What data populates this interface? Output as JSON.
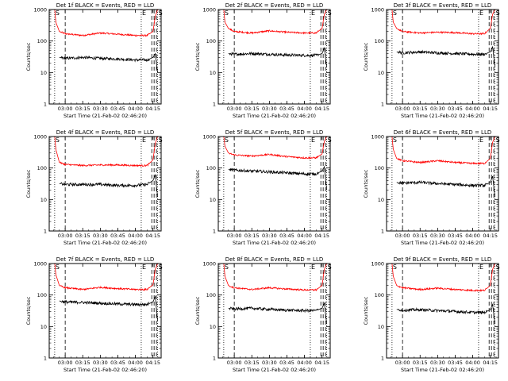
{
  "figure": {
    "panel_titles": [
      "Det 1f BLACK = Events, RED = LLD",
      "Det 2f BLACK = Events, RED = LLD",
      "Det 3f BLACK = Events, RED = LLD",
      "Det 4f BLACK = Events, RED = LLD",
      "Det 5f BLACK = Events, RED = LLD",
      "Det 6f BLACK = Events, RED = LLD",
      "Det 7f BLACK = Events, RED = LLD",
      "Det 8f BLACK = Events, RED = LLD",
      "Det 9f BLACK = Events, RED = LLD"
    ],
    "ylabel": "Counts/sec",
    "xlabel": "Start Time (21-Feb-02 02:46:20)",
    "xticks": [
      "03:00",
      "03:15",
      "03:30",
      "03:45",
      "04:00",
      "04:15"
    ],
    "yticks": [
      "1",
      "10",
      "100",
      "1000"
    ],
    "flags": [
      "S",
      "E",
      "S"
    ]
  },
  "colors": {
    "events": "#000000",
    "lld": "#ff0000",
    "axes": "#000000"
  },
  "chart_data": [
    {
      "type": "line",
      "title": "Det 1f BLACK = Events, RED = LLD",
      "xlabel": "Start Time (21-Feb-02 02:46:20)",
      "ylabel": "Counts/sec",
      "ylim": [
        1,
        1000
      ],
      "yscale": "log",
      "xlim": [
        "02:46:20",
        "04:22:00"
      ],
      "grid": false,
      "x": [
        "02:51",
        "02:52",
        "02:55",
        "03:00",
        "03:15",
        "03:30",
        "03:45",
        "04:00",
        "04:10",
        "04:15",
        "04:17",
        "04:19"
      ],
      "series": [
        {
          "name": "RED = LLD",
          "values": [
            1000,
            400,
            200,
            170,
            150,
            180,
            165,
            150,
            150,
            200,
            600,
            1000
          ]
        },
        {
          "name": "BLACK = Events",
          "values": [
            null,
            null,
            30,
            28,
            30,
            28,
            27,
            25,
            25,
            30,
            40,
            10
          ]
        }
      ],
      "vlines_dotted": [
        "02:51",
        "04:05",
        "04:19"
      ],
      "vlines_dashed": [
        "03:00",
        "04:14",
        "04:16",
        "04:18"
      ]
    },
    {
      "type": "line",
      "title": "Det 2f BLACK = Events, RED = LLD",
      "xlabel": "Start Time (21-Feb-02 02:46:20)",
      "ylabel": "Counts/sec",
      "ylim": [
        1,
        1000
      ],
      "yscale": "log",
      "xlim": [
        "02:46:20",
        "04:22:00"
      ],
      "grid": false,
      "x": [
        "02:51",
        "02:52",
        "02:55",
        "03:00",
        "03:15",
        "03:30",
        "03:45",
        "04:00",
        "04:10",
        "04:15",
        "04:17",
        "04:19"
      ],
      "series": [
        {
          "name": "RED = LLD",
          "values": [
            1000,
            400,
            250,
            200,
            180,
            210,
            190,
            180,
            180,
            250,
            700,
            1000
          ]
        },
        {
          "name": "BLACK = Events",
          "values": [
            null,
            null,
            40,
            38,
            40,
            38,
            36,
            35,
            35,
            40,
            60,
            15
          ]
        }
      ],
      "vlines_dotted": [
        "02:51",
        "04:05",
        "04:19"
      ],
      "vlines_dashed": [
        "03:00",
        "04:14",
        "04:16",
        "04:18"
      ]
    },
    {
      "type": "line",
      "title": "Det 3f BLACK = Events, RED = LLD",
      "xlabel": "Start Time (21-Feb-02 02:46:20)",
      "ylabel": "Counts/sec",
      "ylim": [
        1,
        1000
      ],
      "yscale": "log",
      "xlim": [
        "02:46:20",
        "04:22:00"
      ],
      "grid": false,
      "x": [
        "02:51",
        "02:52",
        "02:55",
        "03:00",
        "03:15",
        "03:30",
        "03:45",
        "04:00",
        "04:10",
        "04:15",
        "04:17",
        "04:19"
      ],
      "series": [
        {
          "name": "RED = LLD",
          "values": [
            1000,
            400,
            250,
            200,
            180,
            190,
            185,
            170,
            170,
            250,
            700,
            1000
          ]
        },
        {
          "name": "BLACK = Events",
          "values": [
            null,
            null,
            45,
            42,
            45,
            42,
            40,
            38,
            38,
            45,
            65,
            15
          ]
        }
      ],
      "vlines_dotted": [
        "02:51",
        "04:05",
        "04:19"
      ],
      "vlines_dashed": [
        "03:00",
        "04:14",
        "04:16",
        "04:18"
      ]
    },
    {
      "type": "line",
      "title": "Det 4f BLACK = Events, RED = LLD",
      "xlabel": "Start Time (21-Feb-02 02:46:20)",
      "ylabel": "Counts/sec",
      "ylim": [
        1,
        1000
      ],
      "yscale": "log",
      "xlim": [
        "02:46:20",
        "04:22:00"
      ],
      "grid": false,
      "x": [
        "02:51",
        "02:52",
        "02:55",
        "03:00",
        "03:15",
        "03:30",
        "03:45",
        "04:00",
        "04:10",
        "04:15",
        "04:17",
        "04:19"
      ],
      "series": [
        {
          "name": "RED = LLD",
          "values": [
            1000,
            400,
            150,
            130,
            120,
            125,
            125,
            120,
            120,
            180,
            600,
            1000
          ]
        },
        {
          "name": "BLACK = Events",
          "values": [
            null,
            null,
            32,
            30,
            30,
            30,
            28,
            28,
            30,
            40,
            60,
            12
          ]
        }
      ],
      "vlines_dotted": [
        "02:51",
        "04:05",
        "04:19"
      ],
      "vlines_dashed": [
        "03:00",
        "04:14",
        "04:16",
        "04:18"
      ]
    },
    {
      "type": "line",
      "title": "Det 5f BLACK = Events, RED = LLD",
      "xlabel": "Start Time (21-Feb-02 02:46:20)",
      "ylabel": "Counts/sec",
      "ylim": [
        1,
        1000
      ],
      "yscale": "log",
      "xlim": [
        "02:46:20",
        "04:22:00"
      ],
      "grid": false,
      "x": [
        "02:51",
        "02:52",
        "02:55",
        "03:00",
        "03:15",
        "03:30",
        "03:45",
        "04:00",
        "04:10",
        "04:15",
        "04:17",
        "04:19"
      ],
      "series": [
        {
          "name": "RED = LLD",
          "values": [
            1000,
            500,
            300,
            260,
            240,
            270,
            230,
            210,
            210,
            280,
            700,
            1000
          ]
        },
        {
          "name": "BLACK = Events",
          "values": [
            null,
            null,
            90,
            85,
            80,
            75,
            70,
            65,
            65,
            80,
            110,
            20
          ]
        }
      ],
      "vlines_dotted": [
        "02:51",
        "04:05",
        "04:19"
      ],
      "vlines_dashed": [
        "03:00",
        "04:14",
        "04:16",
        "04:18"
      ]
    },
    {
      "type": "line",
      "title": "Det 6f BLACK = Events, RED = LLD",
      "xlabel": "Start Time (21-Feb-02 02:46:20)",
      "ylabel": "Counts/sec",
      "ylim": [
        1,
        1000
      ],
      "yscale": "log",
      "xlim": [
        "02:46:20",
        "04:22:00"
      ],
      "grid": false,
      "x": [
        "02:51",
        "02:52",
        "02:55",
        "03:00",
        "03:15",
        "03:30",
        "03:45",
        "04:00",
        "04:10",
        "04:15",
        "04:17",
        "04:19"
      ],
      "series": [
        {
          "name": "RED = LLD",
          "values": [
            1000,
            400,
            200,
            170,
            150,
            170,
            150,
            140,
            140,
            200,
            650,
            1000
          ]
        },
        {
          "name": "BLACK = Events",
          "values": [
            null,
            null,
            35,
            33,
            35,
            32,
            30,
            28,
            28,
            35,
            55,
            12
          ]
        }
      ],
      "vlines_dotted": [
        "02:51",
        "04:05",
        "04:19"
      ],
      "vlines_dashed": [
        "03:00",
        "04:14",
        "04:16",
        "04:18"
      ]
    },
    {
      "type": "line",
      "title": "Det 7f BLACK = Events, RED = LLD",
      "xlabel": "Start Time (21-Feb-02 02:46:20)",
      "ylabel": "Counts/sec",
      "ylim": [
        1,
        1000
      ],
      "yscale": "log",
      "xlim": [
        "02:46:20",
        "04:22:00"
      ],
      "grid": false,
      "x": [
        "02:51",
        "02:52",
        "02:55",
        "03:00",
        "03:15",
        "03:30",
        "03:45",
        "04:00",
        "04:10",
        "04:15",
        "04:17",
        "04:19"
      ],
      "series": [
        {
          "name": "RED = LLD",
          "values": [
            1000,
            450,
            200,
            170,
            150,
            175,
            160,
            150,
            150,
            210,
            650,
            1000
          ]
        },
        {
          "name": "BLACK = Events",
          "values": [
            null,
            null,
            65,
            60,
            58,
            55,
            52,
            50,
            50,
            60,
            90,
            15
          ]
        }
      ],
      "vlines_dotted": [
        "02:51",
        "04:05",
        "04:19"
      ],
      "vlines_dashed": [
        "03:00",
        "04:14",
        "04:16",
        "04:18"
      ]
    },
    {
      "type": "line",
      "title": "Det 8f BLACK = Events, RED = LLD",
      "xlabel": "Start Time (21-Feb-02 02:46:20)",
      "ylabel": "Counts/sec",
      "ylim": [
        1,
        1000
      ],
      "yscale": "log",
      "xlim": [
        "02:46:20",
        "04:22:00"
      ],
      "grid": false,
      "x": [
        "02:51",
        "02:52",
        "02:55",
        "03:00",
        "03:15",
        "03:30",
        "03:45",
        "04:00",
        "04:10",
        "04:15",
        "04:17",
        "04:19"
      ],
      "series": [
        {
          "name": "RED = LLD",
          "values": [
            1000,
            400,
            200,
            170,
            150,
            170,
            155,
            145,
            145,
            200,
            650,
            1000
          ]
        },
        {
          "name": "BLACK = Events",
          "values": [
            null,
            null,
            38,
            36,
            38,
            35,
            33,
            32,
            32,
            38,
            55,
            12
          ]
        }
      ],
      "vlines_dotted": [
        "02:51",
        "04:05",
        "04:19"
      ],
      "vlines_dashed": [
        "03:00",
        "04:14",
        "04:16",
        "04:18"
      ]
    },
    {
      "type": "line",
      "title": "Det 9f BLACK = Events, RED = LLD",
      "xlabel": "Start Time (21-Feb-02 02:46:20)",
      "ylabel": "Counts/sec",
      "ylim": [
        1,
        1000
      ],
      "yscale": "log",
      "xlim": [
        "02:46:20",
        "04:22:00"
      ],
      "grid": false,
      "x": [
        "02:51",
        "02:52",
        "02:55",
        "03:00",
        "03:15",
        "03:30",
        "03:45",
        "04:00",
        "04:10",
        "04:15",
        "04:17",
        "04:19"
      ],
      "series": [
        {
          "name": "RED = LLD",
          "values": [
            1000,
            400,
            200,
            170,
            150,
            165,
            150,
            140,
            140,
            200,
            650,
            1000
          ]
        },
        {
          "name": "BLACK = Events",
          "values": [
            null,
            null,
            35,
            33,
            34,
            32,
            30,
            28,
            28,
            34,
            50,
            12
          ]
        }
      ],
      "vlines_dotted": [
        "02:51",
        "04:05",
        "04:19"
      ],
      "vlines_dashed": [
        "03:00",
        "04:14",
        "04:16",
        "04:18"
      ]
    }
  ]
}
